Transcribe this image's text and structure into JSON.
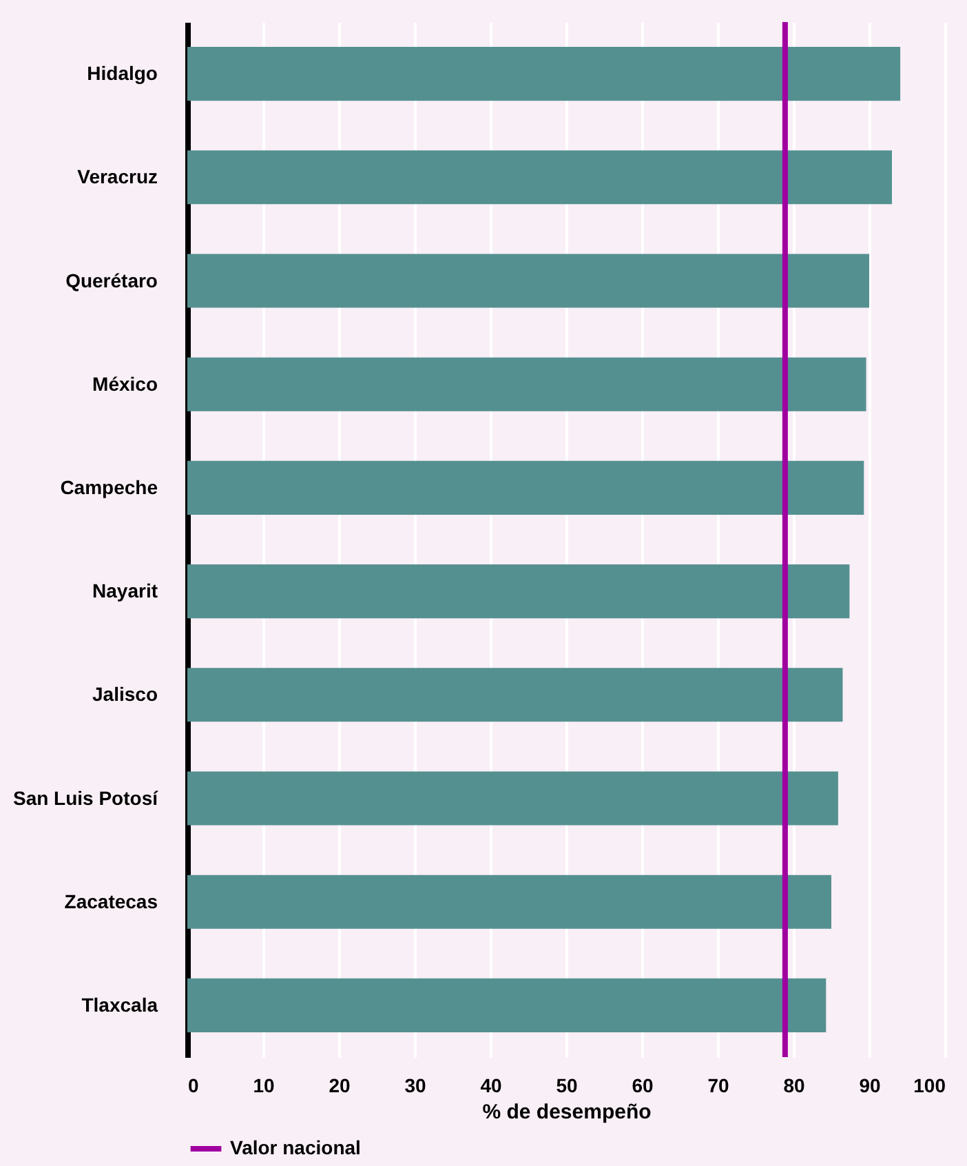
{
  "chart_data": {
    "type": "bar",
    "orientation": "horizontal",
    "xlabel": "% de desempeño",
    "categories": [
      "Hidalgo",
      "Veracruz",
      "Querétaro",
      "México",
      "Campeche",
      "Nayarit",
      "Jalisco",
      "San Luis Potosí",
      "Zacatecas",
      "Tlaxcala"
    ],
    "values": [
      94.1,
      93.0,
      90.0,
      89.6,
      89.3,
      87.4,
      86.5,
      85.9,
      85.0,
      84.3
    ],
    "color": "#559090",
    "xlim": [
      0,
      100
    ],
    "xticks": [
      0,
      10,
      20,
      30,
      40,
      50,
      60,
      70,
      80,
      90,
      100
    ],
    "grid": "x",
    "legend": "bottom",
    "ref_lines": [
      {
        "axis": "x",
        "value": 78.9,
        "label": "Valor nacional",
        "color": "#a000a0"
      }
    ]
  }
}
